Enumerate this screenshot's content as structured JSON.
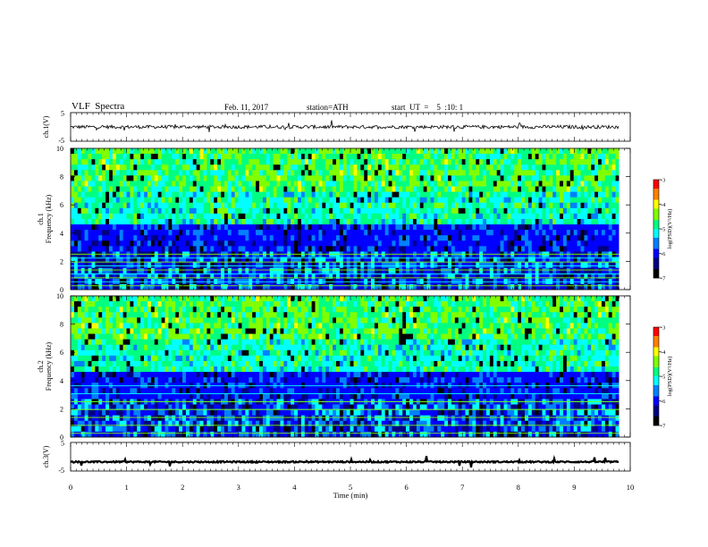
{
  "header": {
    "title": "VLF  Spectra",
    "date": "Feb. 11, 2017",
    "station": "station=ATH",
    "start_ut": "start  UT  =    5  :10: 1"
  },
  "colors": {
    "colormap": [
      "#000000",
      "#000080",
      "#0000ff",
      "#0080ff",
      "#00ffff",
      "#00ff80",
      "#80ff00",
      "#ffff00",
      "#ff8000",
      "#ff0000",
      "#ffffff"
    ],
    "trace": "#000000",
    "axis": "#000000"
  },
  "chart_data": [
    {
      "id": "ch1-waveform",
      "type": "line",
      "ylabel": "ch.1(V)",
      "ylim": [
        -5,
        5
      ],
      "yticks": [
        "5",
        "-5"
      ],
      "xlim": [
        0,
        10
      ],
      "series": [
        {
          "mean": 0.0,
          "noise_amplitude": 0.6,
          "end_min": 9.8
        }
      ]
    },
    {
      "id": "ch1-spectrogram",
      "type": "heatmap",
      "ylabel_top": "ch.1",
      "ylabel": "Frequency  (kHz)",
      "ylim": [
        0,
        10
      ],
      "yticks": [
        "0",
        "2",
        "4",
        "6",
        "8",
        "10"
      ],
      "xlim": [
        0,
        10
      ],
      "data_end_min": 9.8,
      "colorbar": {
        "label": "log(PSD)(V²/Hz)",
        "range": [
          -7,
          -3
        ],
        "ticks": [
          "-3",
          "-4",
          "-5",
          "-6",
          "-7"
        ]
      }
    },
    {
      "id": "ch2-spectrogram",
      "type": "heatmap",
      "ylabel_top": "ch.2",
      "ylabel": "Frequency  (kHz)",
      "ylim": [
        0,
        10
      ],
      "yticks": [
        "0",
        "2",
        "4",
        "6",
        "8",
        "10"
      ],
      "xlim": [
        0,
        10
      ],
      "data_end_min": 9.8,
      "colorbar": {
        "label": "log(PSD)(V²/Hz)",
        "range": [
          -7,
          -3
        ],
        "ticks": [
          "-3",
          "-4",
          "-5",
          "-6",
          "-7"
        ]
      }
    },
    {
      "id": "ch3-waveform",
      "type": "line",
      "ylabel": "ch.3(V)",
      "ylim": [
        -5,
        5
      ],
      "yticks": [
        "5",
        "-5"
      ],
      "xlim": [
        0,
        10
      ],
      "xlabel": "Time  (min)",
      "xticks": [
        "0",
        "1",
        "2",
        "3",
        "4",
        "5",
        "6",
        "7",
        "8",
        "9",
        "10"
      ],
      "series": [
        {
          "mean": -1.8,
          "noise_amplitude": 0.25,
          "end_min": 9.8
        }
      ]
    }
  ]
}
